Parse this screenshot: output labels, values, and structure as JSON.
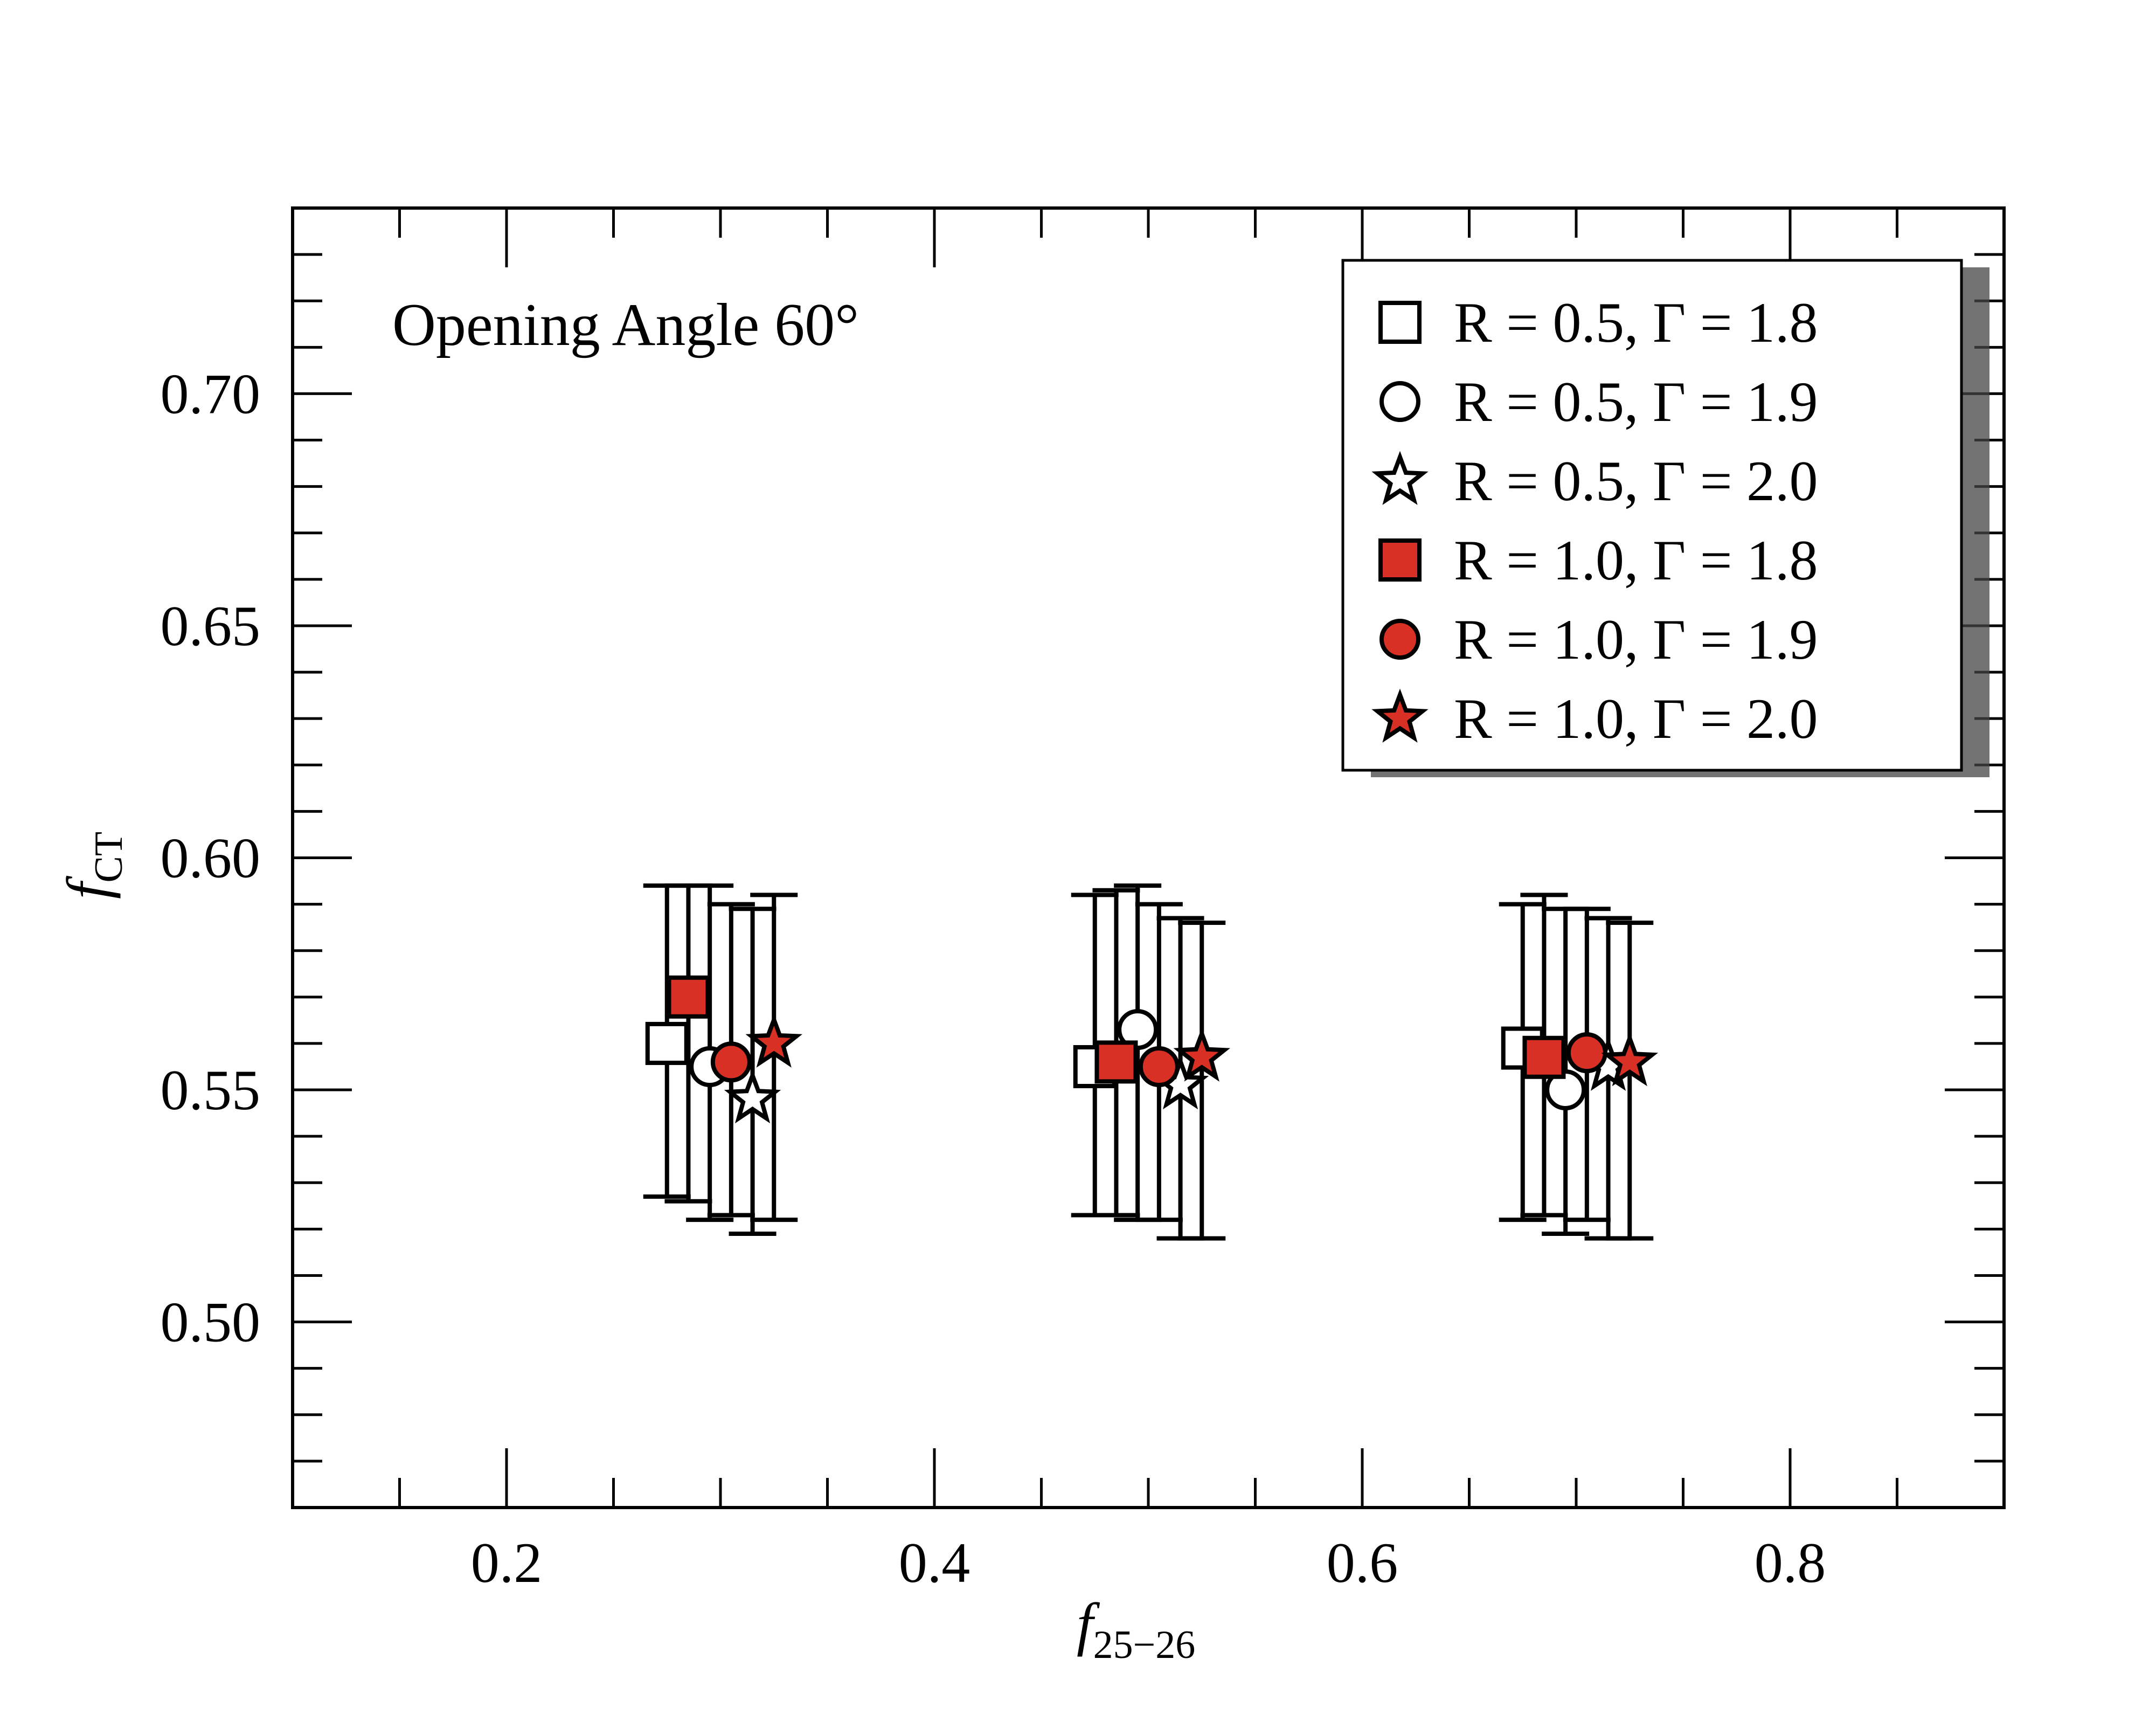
{
  "chart_data": {
    "type": "scatter",
    "annotation": "Opening Angle 60°",
    "xlabel": {
      "main": "f",
      "sub": "25−26"
    },
    "ylabel": {
      "main": "f",
      "sub": "CT"
    },
    "xlim": [
      0.1,
      0.9
    ],
    "ylim": [
      0.46,
      0.74
    ],
    "xticks": [
      0.2,
      0.4,
      0.6,
      0.8
    ],
    "xtick_labels": [
      "0.2",
      "0.4",
      "0.6",
      "0.8"
    ],
    "yticks": [
      0.5,
      0.55,
      0.6,
      0.65,
      0.7
    ],
    "ytick_labels": [
      "0.50",
      "0.55",
      "0.60",
      "0.65",
      "0.70"
    ],
    "x_minor_step": 0.05,
    "y_minor_step": 0.01,
    "grid": false,
    "legend_position": "top-right",
    "colors": {
      "filled": "#d93025",
      "open": "#ffffff",
      "stroke": "#000000"
    },
    "series": [
      {
        "label": "R = 0.5, Γ = 1.8",
        "marker": "square",
        "fill": "open",
        "points": [
          {
            "x": 0.275,
            "y": 0.56,
            "ylo": 0.527,
            "yhi": 0.594
          },
          {
            "x": 0.475,
            "y": 0.555,
            "ylo": 0.523,
            "yhi": 0.592
          },
          {
            "x": 0.675,
            "y": 0.559,
            "ylo": 0.522,
            "yhi": 0.59
          }
        ]
      },
      {
        "label": "R = 0.5, Γ = 1.9",
        "marker": "circle",
        "fill": "open",
        "points": [
          {
            "x": 0.295,
            "y": 0.555,
            "ylo": 0.522,
            "yhi": 0.594
          },
          {
            "x": 0.495,
            "y": 0.563,
            "ylo": 0.522,
            "yhi": 0.594
          },
          {
            "x": 0.695,
            "y": 0.55,
            "ylo": 0.519,
            "yhi": 0.589
          }
        ]
      },
      {
        "label": "R = 0.5, Γ = 2.0",
        "marker": "star",
        "fill": "open",
        "points": [
          {
            "x": 0.315,
            "y": 0.548,
            "ylo": 0.519,
            "yhi": 0.589
          },
          {
            "x": 0.515,
            "y": 0.551,
            "ylo": 0.518,
            "yhi": 0.587
          },
          {
            "x": 0.715,
            "y": 0.555,
            "ylo": 0.518,
            "yhi": 0.587
          }
        ]
      },
      {
        "label": "R = 1.0, Γ = 1.8",
        "marker": "square",
        "fill": "filled",
        "points": [
          {
            "x": 0.285,
            "y": 0.57,
            "ylo": 0.526,
            "yhi": 0.594
          },
          {
            "x": 0.485,
            "y": 0.556,
            "ylo": 0.523,
            "yhi": 0.593
          },
          {
            "x": 0.685,
            "y": 0.557,
            "ylo": 0.523,
            "yhi": 0.592
          }
        ]
      },
      {
        "label": "R = 1.0, Γ = 1.9",
        "marker": "circle",
        "fill": "filled",
        "points": [
          {
            "x": 0.305,
            "y": 0.556,
            "ylo": 0.523,
            "yhi": 0.59
          },
          {
            "x": 0.505,
            "y": 0.555,
            "ylo": 0.522,
            "yhi": 0.59
          },
          {
            "x": 0.705,
            "y": 0.558,
            "ylo": 0.522,
            "yhi": 0.589
          }
        ]
      },
      {
        "label": "R = 1.0, Γ = 2.0",
        "marker": "star",
        "fill": "filled",
        "points": [
          {
            "x": 0.325,
            "y": 0.56,
            "ylo": 0.522,
            "yhi": 0.592
          },
          {
            "x": 0.525,
            "y": 0.557,
            "ylo": 0.518,
            "yhi": 0.586
          },
          {
            "x": 0.725,
            "y": 0.556,
            "ylo": 0.518,
            "yhi": 0.586
          }
        ]
      }
    ]
  }
}
